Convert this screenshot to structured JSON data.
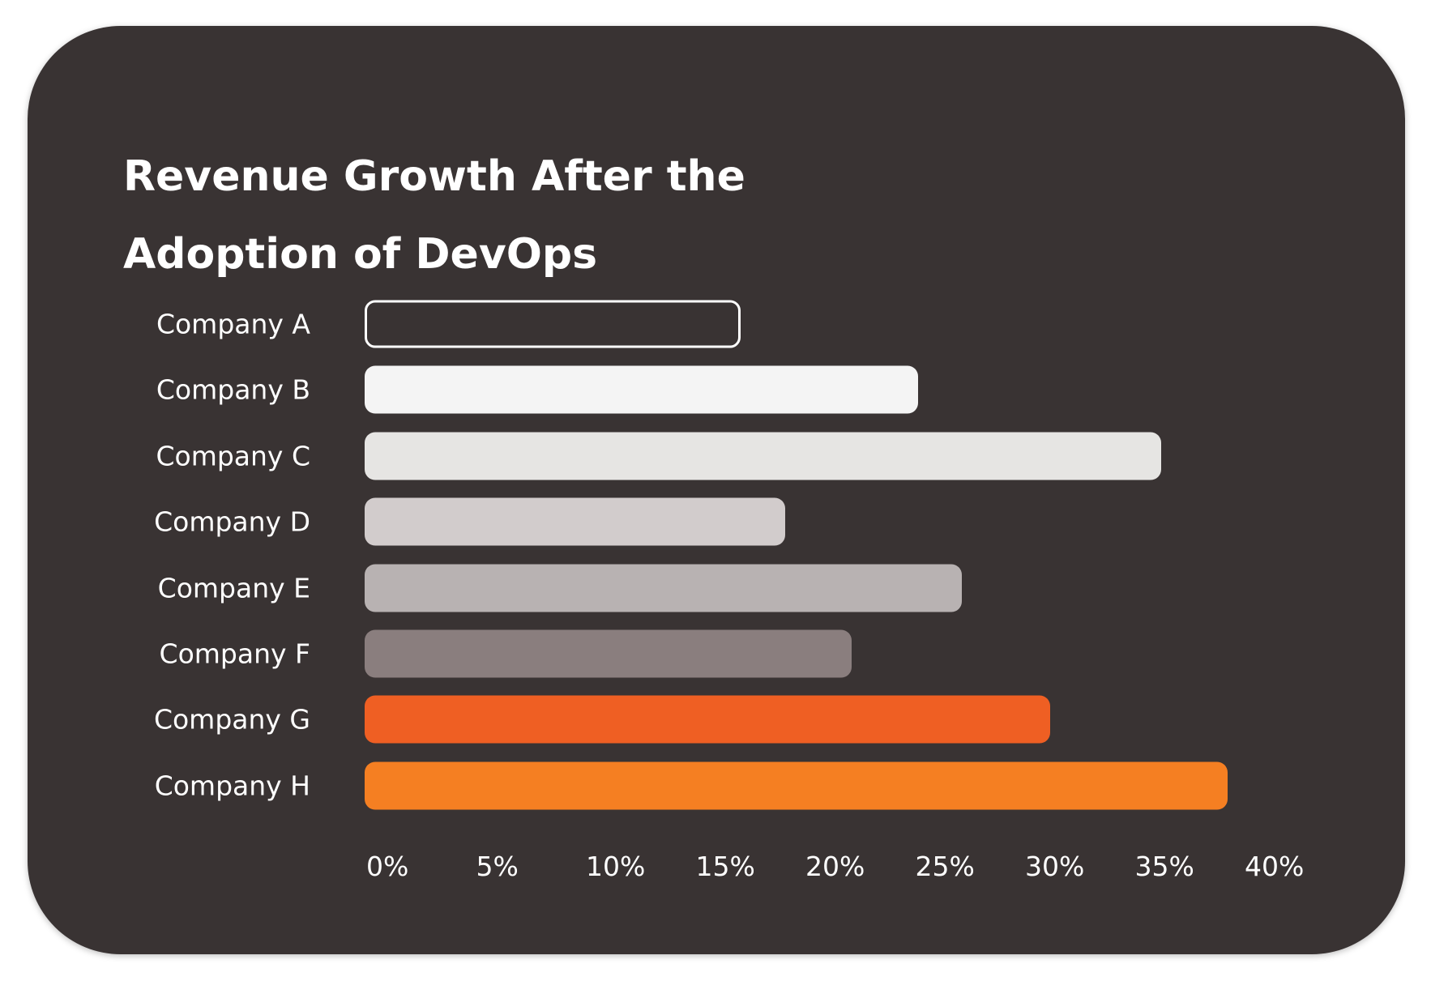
{
  "chart_data": {
    "type": "bar",
    "orientation": "horizontal",
    "title": "Revenue Growth After the Adoption of DevOps",
    "title_lines": [
      "Revenue Growth After the",
      "Adoption of DevOps"
    ],
    "categories": [
      "Company A",
      "Company B",
      "Company C",
      "Company D",
      "Company E",
      "Company F",
      "Company G",
      "Company H"
    ],
    "values": [
      17,
      25,
      36,
      19,
      27,
      22,
      31,
      39
    ],
    "unit": "%",
    "xlim": [
      0,
      40
    ],
    "x_ticks": [
      "0%",
      "5%",
      "10%",
      "15%",
      "20%",
      "25%",
      "30%",
      "35%",
      "40%"
    ],
    "x_tick_values": [
      0,
      5,
      10,
      15,
      20,
      25,
      30,
      35,
      40
    ],
    "grid": false,
    "colors": [
      "outline-white",
      "#f4f4f4",
      "#e6e5e3",
      "#d2cccc",
      "#b8b2b2",
      "#8a7e7e",
      "#ef5f23",
      "#f57f22"
    ],
    "background": "#393333"
  }
}
